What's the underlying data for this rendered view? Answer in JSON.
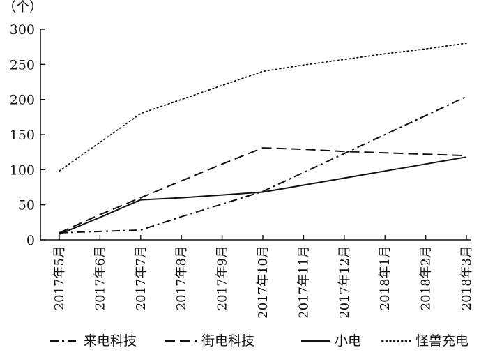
{
  "chart_data": {
    "type": "line",
    "title": "",
    "xlabel": "",
    "ylabel": "（个）",
    "ylim": [
      0,
      300
    ],
    "yticks": [
      0,
      50,
      100,
      150,
      200,
      250,
      300
    ],
    "categories": [
      "2017年5月",
      "2017年6月",
      "2017年7月",
      "2017年8月",
      "2017年9月",
      "2017年10月",
      "2017年11月",
      "2017年12月",
      "2018年1月",
      "2018年2月",
      "2018年3月"
    ],
    "grid": false,
    "legend_position": "bottom",
    "series": [
      {
        "name": "来电科技",
        "line_style": "dash-dot",
        "color": "#111111",
        "values": [
          10,
          12,
          14,
          33,
          51,
          69,
          96,
          123,
          150,
          177,
          204
        ]
      },
      {
        "name": "街电科技",
        "line_style": "dashed",
        "color": "#111111",
        "values": [
          10,
          36,
          60,
          84,
          108,
          131,
          129,
          126,
          124,
          122,
          120
        ]
      },
      {
        "name": "小电",
        "line_style": "solid",
        "color": "#111111",
        "values": [
          8,
          32,
          57,
          60,
          64,
          68,
          78,
          88,
          98,
          108,
          118
        ]
      },
      {
        "name": "怪兽充电",
        "line_style": "dotted",
        "color": "#111111",
        "values": [
          98,
          139,
          180,
          200,
          220,
          240,
          249,
          257,
          265,
          272,
          280
        ]
      }
    ]
  }
}
